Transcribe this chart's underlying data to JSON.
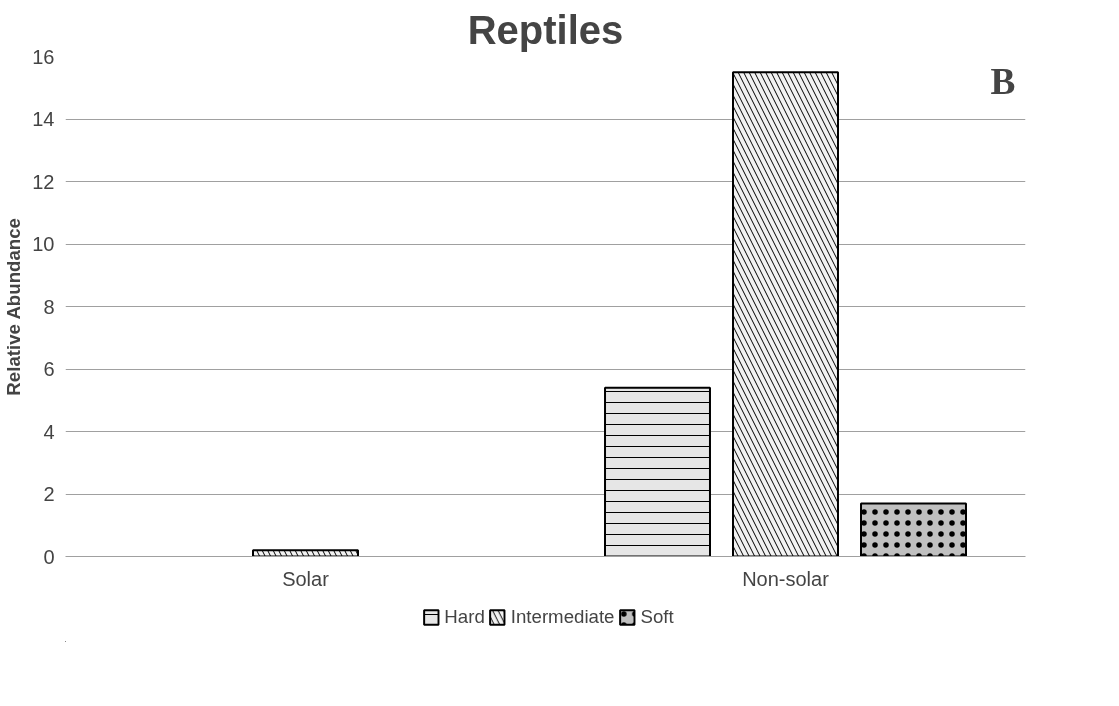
{
  "chart_data": {
    "type": "bar",
    "title": "Reptiles",
    "ylabel": "Relative Abundance",
    "categories": [
      "Solar",
      "Non-solar"
    ],
    "series": [
      {
        "name": "Hard",
        "color": "#e6e6e6",
        "values": [
          null,
          5.4
        ]
      },
      {
        "name": "Intermediate",
        "color": "#f2f2f2",
        "values": [
          0.2,
          15.5
        ]
      },
      {
        "name": "Soft",
        "color": "#c0c0c0",
        "values": [
          null,
          1.7
        ]
      }
    ],
    "ylim": [
      0,
      16
    ],
    "yticks": [
      0,
      2,
      4,
      6,
      8,
      10,
      12,
      14,
      16
    ],
    "grid": "y",
    "legend": "bottom",
    "annotations": [
      "B"
    ]
  }
}
